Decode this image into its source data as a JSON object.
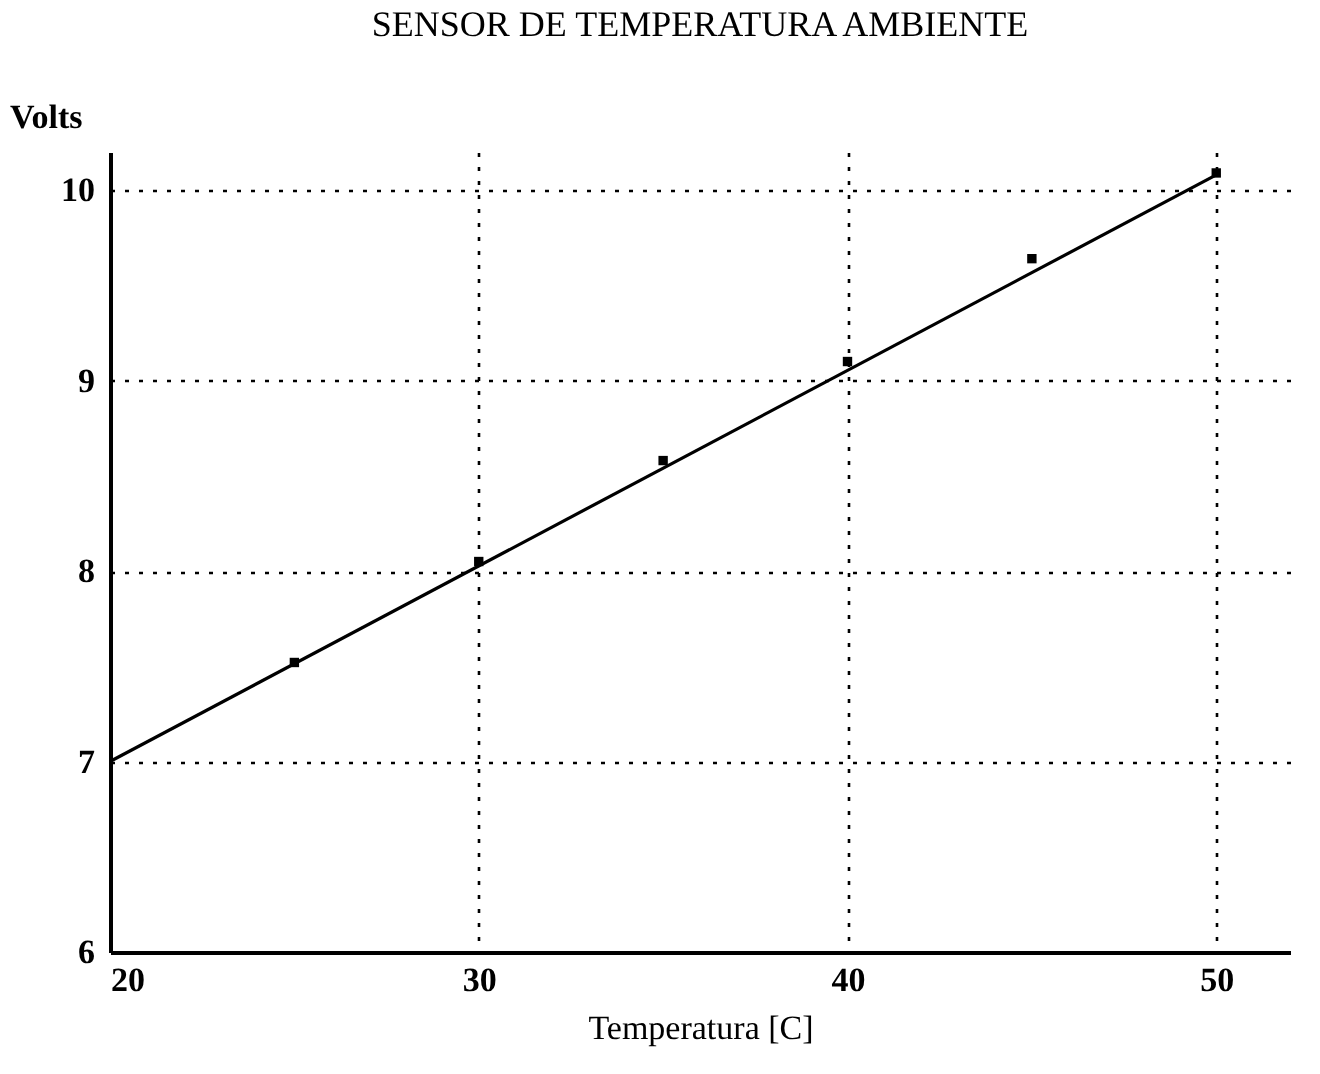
{
  "chart_data": {
    "type": "scatter",
    "title": "SENSOR DE TEMPERATURA AMBIENTE",
    "xlabel": "Temperatura [C]",
    "ylabel": "Volts",
    "xlim": [
      20,
      52
    ],
    "xticks": [
      20,
      30,
      40,
      50
    ],
    "ylim": [
      6,
      10.2
    ],
    "yticks": [
      6,
      7,
      8,
      9,
      10
    ],
    "grid": true,
    "series": [
      {
        "marker": "square",
        "color": "#000000",
        "x": [
          25,
          30,
          35,
          40,
          45,
          50
        ],
        "values": [
          7.52,
          8.05,
          8.58,
          9.1,
          9.64,
          10.09
        ]
      },
      {
        "type": "line",
        "color": "#000000",
        "x": [
          20,
          50
        ],
        "values": [
          7,
          10.08
        ]
      }
    ]
  }
}
